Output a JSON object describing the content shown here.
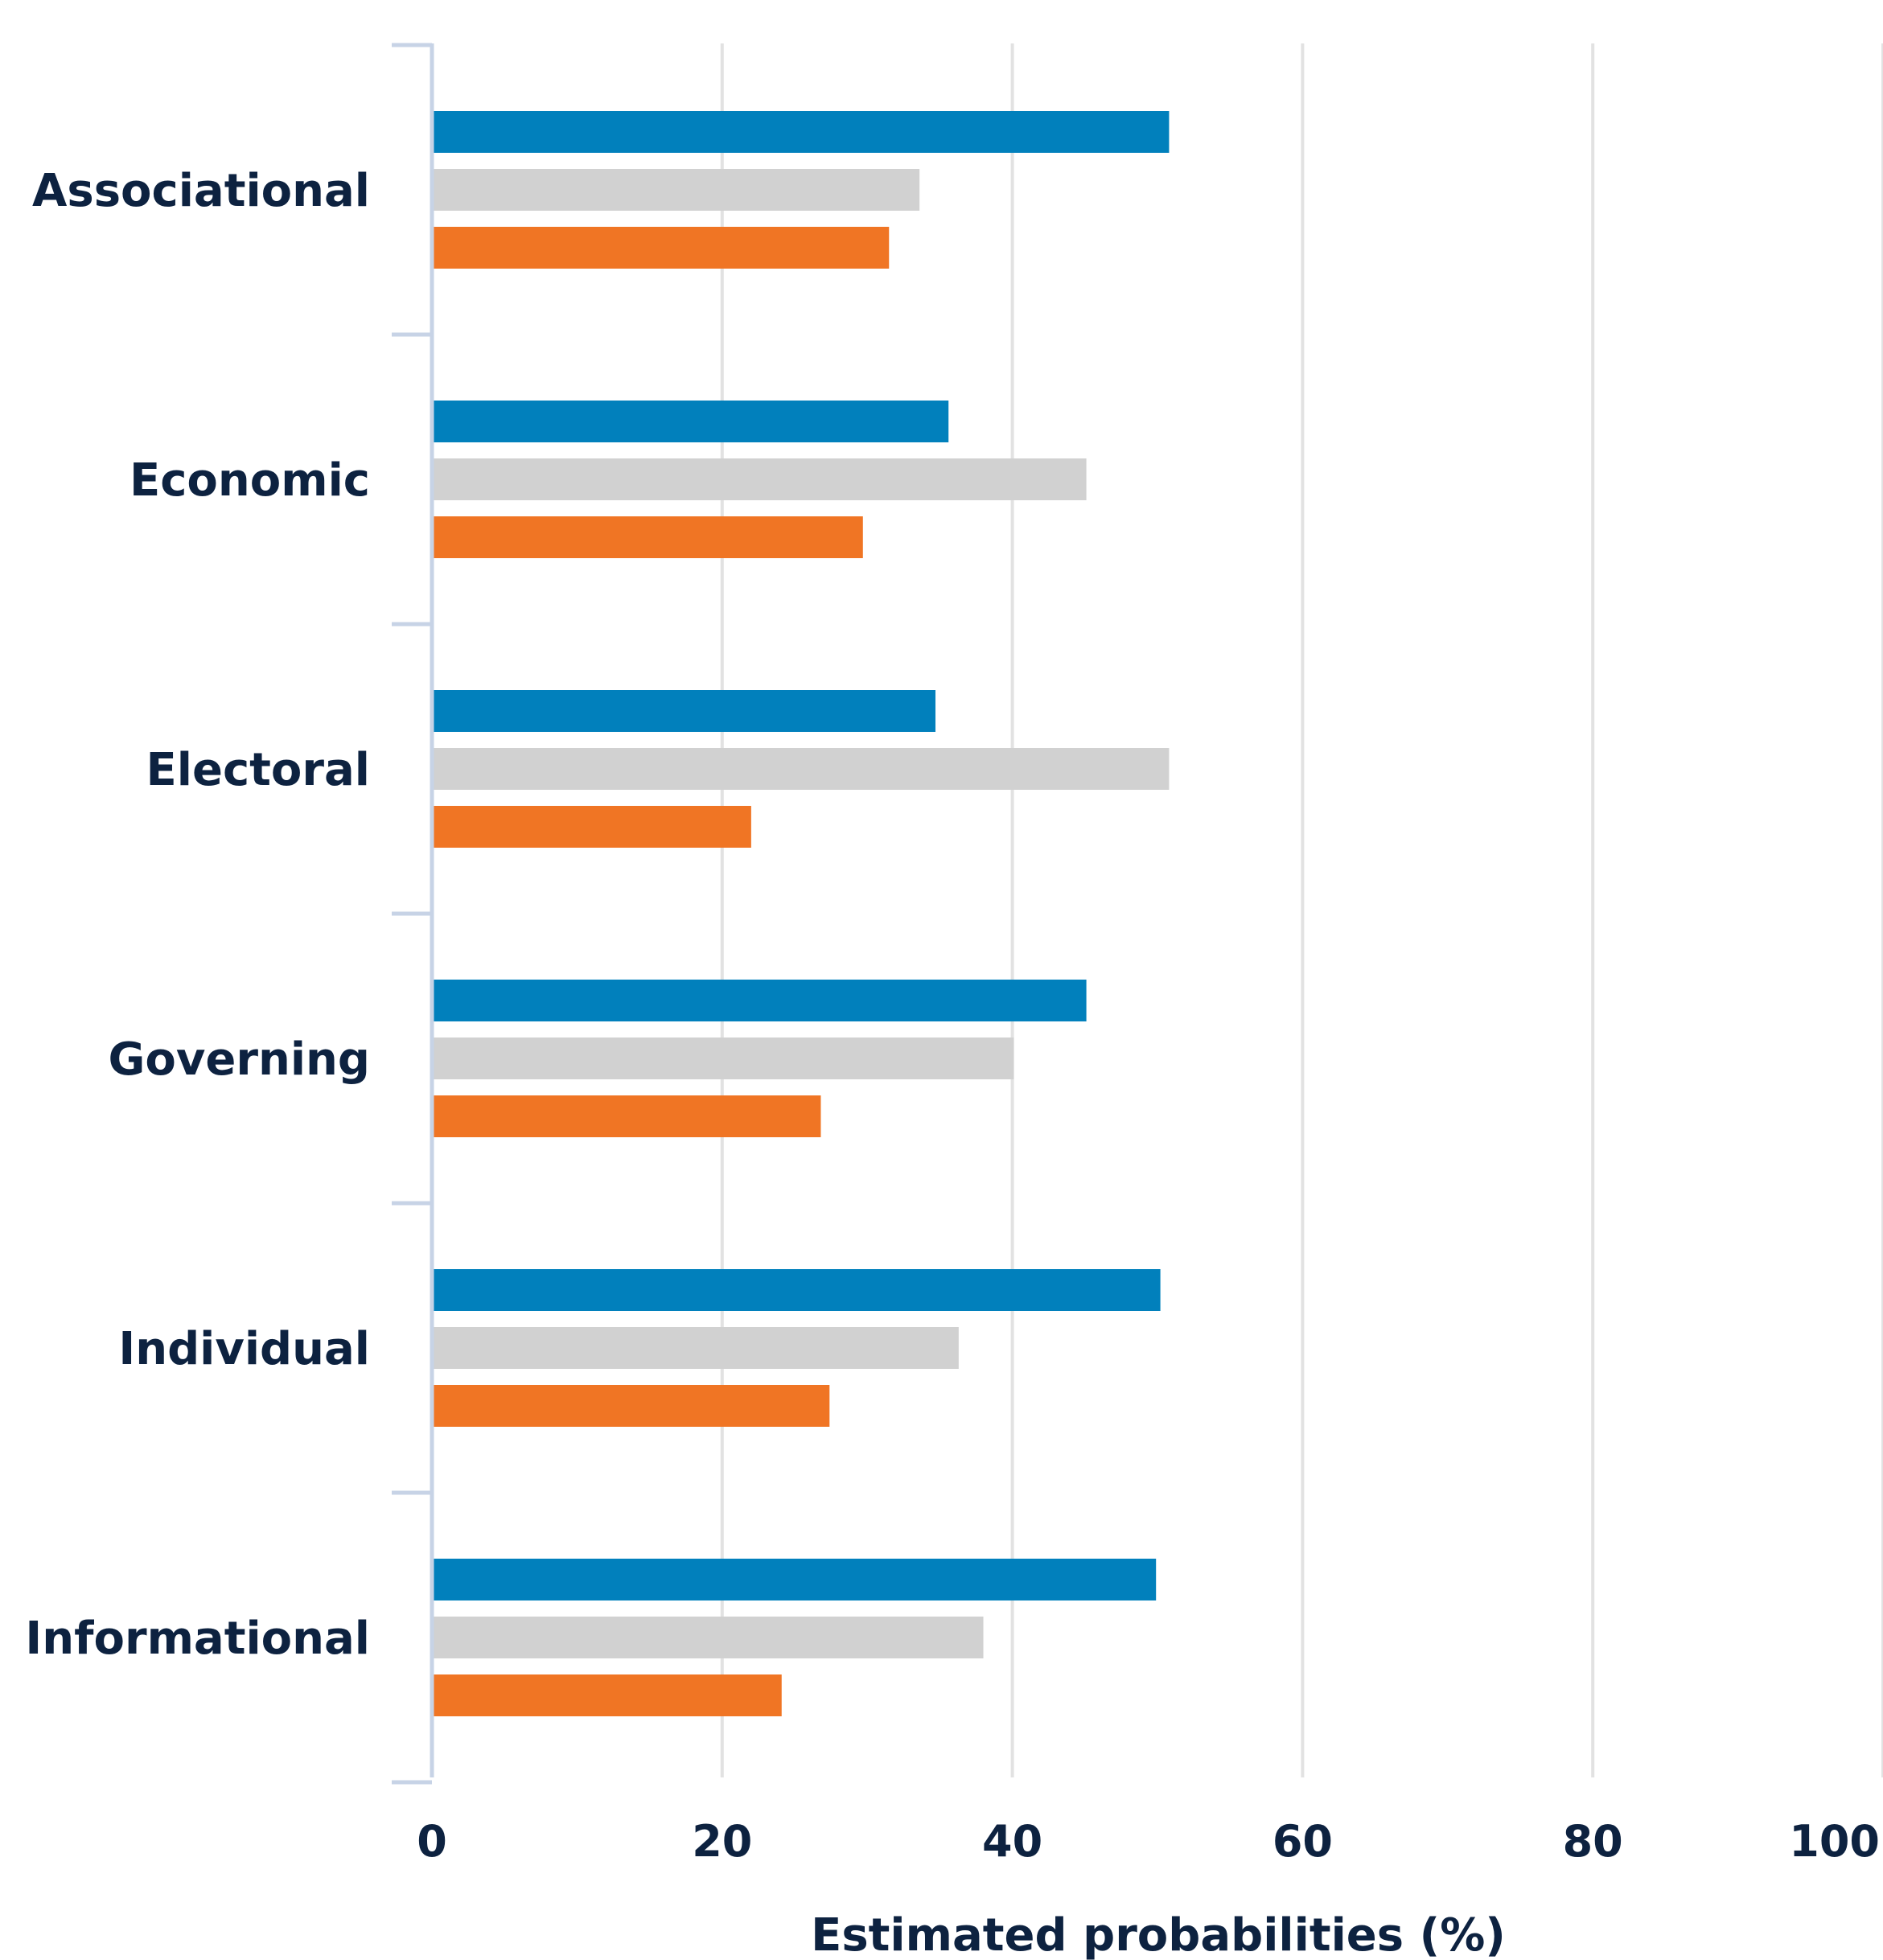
{
  "chart_data": {
    "type": "bar",
    "orientation": "horizontal",
    "categories": [
      "Associational",
      "Economic",
      "Electoral",
      "Governing",
      "Individual",
      "Informational"
    ],
    "series": [
      {
        "color": "#0180bc",
        "values": [
          50.8,
          35.6,
          34.7,
          45.1,
          50.2,
          49.9
        ]
      },
      {
        "color": "#d1d1d1",
        "values": [
          33.6,
          45.1,
          50.8,
          40.1,
          36.3,
          38.0
        ]
      },
      {
        "color": "#f07524",
        "values": [
          31.5,
          29.7,
          22.0,
          26.8,
          27.4,
          24.1
        ]
      }
    ],
    "xlabel": "Estimated probabilities (%)",
    "ylabel": "",
    "title": "",
    "xlim": [
      0,
      100
    ],
    "xticks": [
      "0",
      "20",
      "40",
      "60",
      "80",
      "100"
    ],
    "grid": "vertical",
    "legend": "none",
    "colors": {
      "axis": "#c7d3e6",
      "grid": "#e2e2e2",
      "text": "#0d2240"
    }
  }
}
